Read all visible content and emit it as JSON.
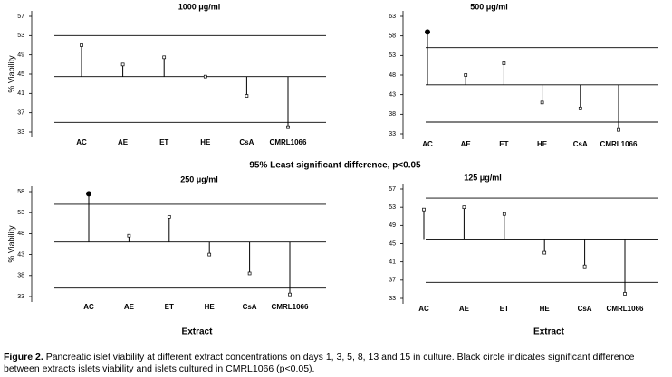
{
  "chart_data": [
    {
      "type": "lollipop",
      "title": "1000 μg/ml",
      "y_label": "% Viability",
      "categories": [
        "AC",
        "AE",
        "ET",
        "HE",
        "CsA",
        "CMRL1066"
      ],
      "values": [
        51,
        47,
        48.5,
        44.5,
        40.5,
        34
      ],
      "markers": [
        "open",
        "open",
        "open",
        "open",
        "open",
        "open"
      ],
      "center": 44.5,
      "upper_limit": 53,
      "lower_limit": 35,
      "ylim": [
        33,
        57
      ],
      "yticks": [
        33,
        37,
        41,
        45,
        49,
        53,
        57
      ],
      "color": "#000000"
    },
    {
      "type": "lollipop",
      "title": "500 μg/ml",
      "categories": [
        "AC",
        "AE",
        "ET",
        "HE",
        "CsA",
        "CMRL1066"
      ],
      "values": [
        59,
        48,
        51,
        41,
        39.5,
        34
      ],
      "markers": [
        "filled",
        "open",
        "open",
        "open",
        "open",
        "open"
      ],
      "center": 45.5,
      "upper_limit": 55,
      "lower_limit": 36,
      "ylim": [
        33,
        63
      ],
      "yticks": [
        33,
        38,
        43,
        48,
        53,
        58,
        63
      ],
      "color": "#000000"
    },
    {
      "type": "lollipop",
      "title": "250 μg/ml",
      "y_label": "% Viability",
      "x_label": "Extract",
      "categories": [
        "AC",
        "AE",
        "ET",
        "HE",
        "CsA",
        "CMRL1066"
      ],
      "values": [
        57.5,
        47.5,
        52,
        43,
        38.5,
        33.5
      ],
      "markers": [
        "filled",
        "open",
        "open",
        "open",
        "open",
        "open"
      ],
      "center": 46,
      "upper_limit": 55,
      "lower_limit": 35,
      "ylim": [
        33,
        58
      ],
      "yticks": [
        33,
        38,
        43,
        48,
        53,
        58
      ],
      "color": "#000000"
    },
    {
      "type": "lollipop",
      "title": "125 μg/ml",
      "x_label": "Extract",
      "categories": [
        "AC",
        "AE",
        "ET",
        "HE",
        "CsA",
        "CMRL1066"
      ],
      "values": [
        52.5,
        53,
        51.5,
        43,
        40,
        34
      ],
      "markers": [
        "open",
        "open",
        "open",
        "open",
        "open",
        "open"
      ],
      "center": 46,
      "upper_limit": 55,
      "lower_limit": 36.5,
      "ylim": [
        33,
        57
      ],
      "yticks": [
        33,
        37,
        41,
        45,
        49,
        53,
        57
      ],
      "color": "#000000"
    }
  ],
  "note": "95%  Least significant difference, p<0.05",
  "caption": {
    "label": "Figure 2.",
    "text": "Pancreatic islet viability at different extract concentrations on days 1, 3, 5, 8, 13 and 15 in culture. Black circle indicates significant difference between extracts islets viability and islets cultured in CMRL1066 (p<0.05)."
  }
}
